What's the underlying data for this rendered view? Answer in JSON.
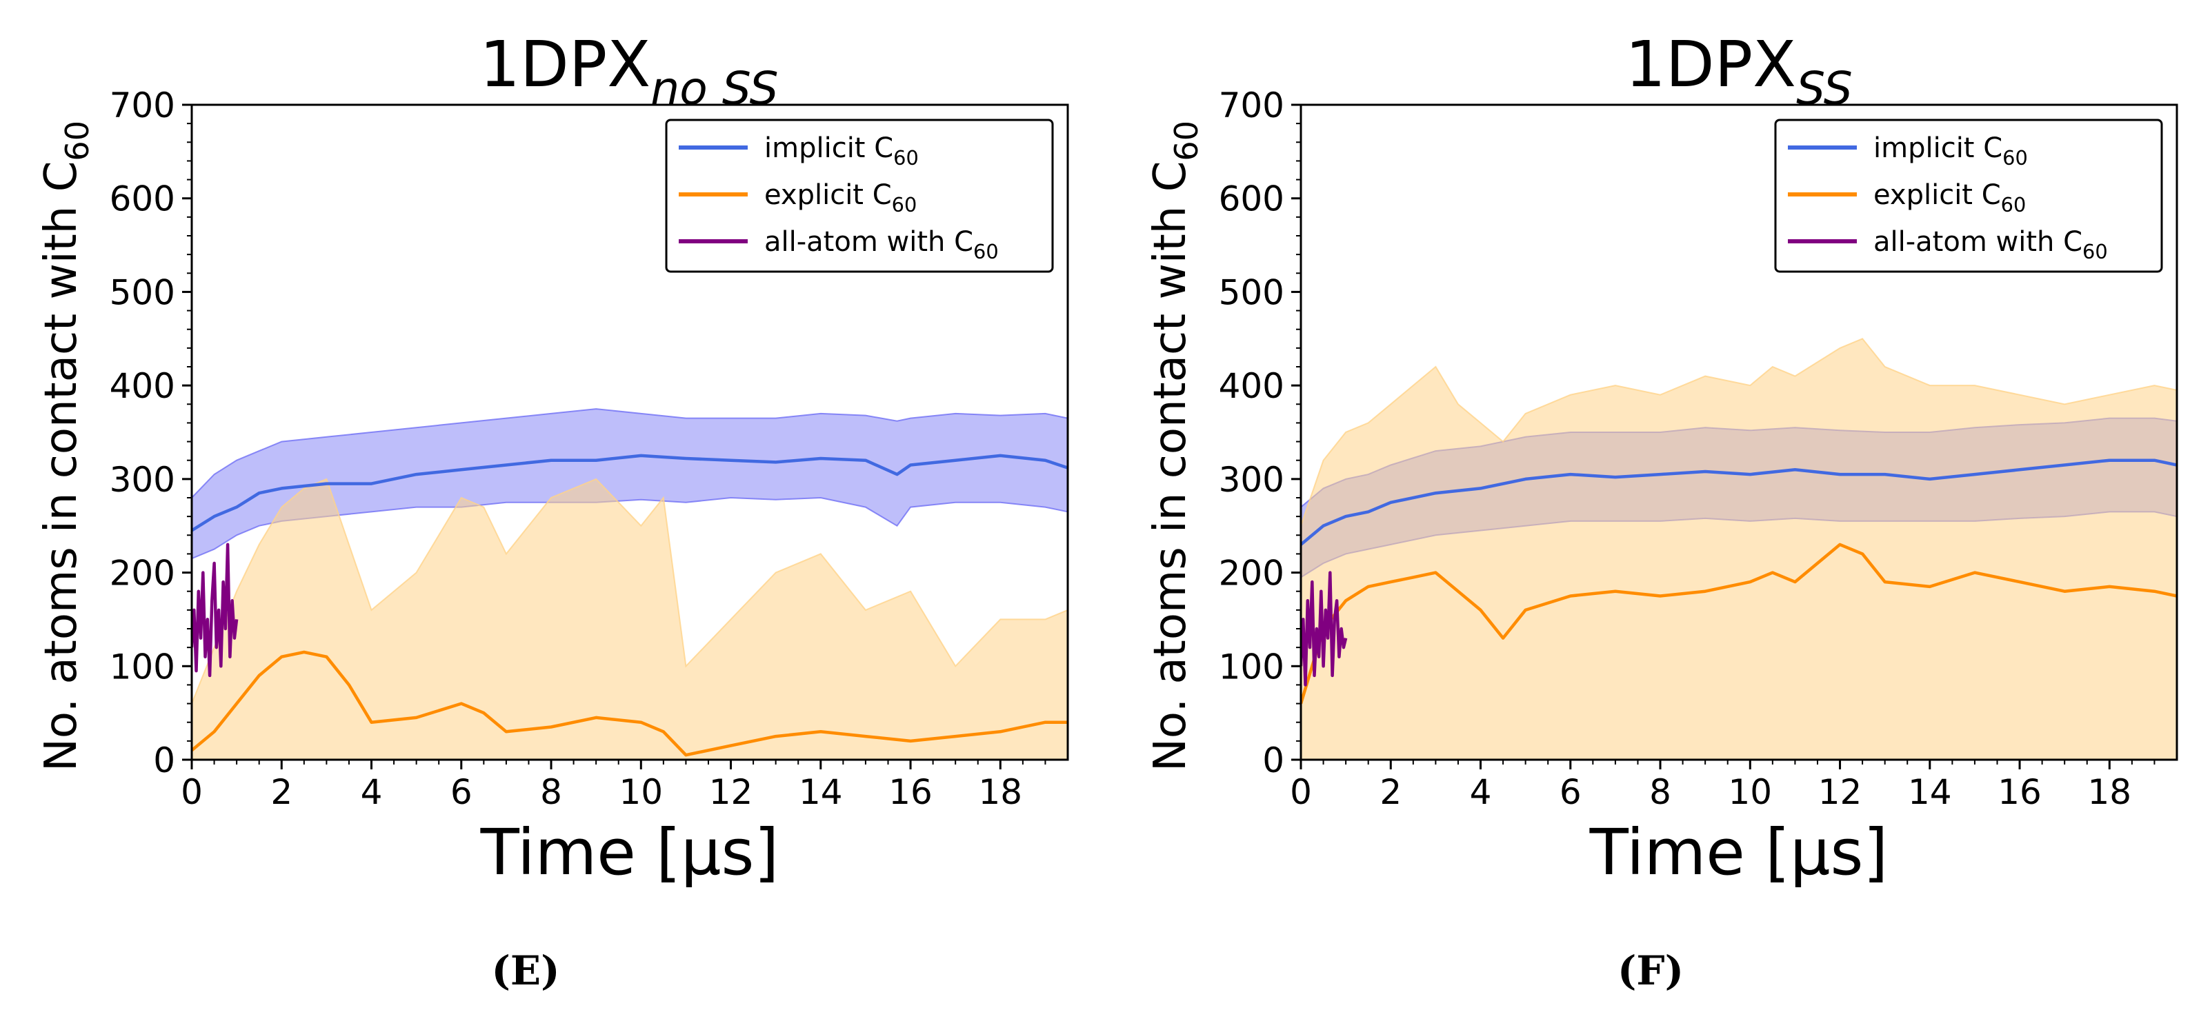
{
  "chart_data": [
    {
      "type": "line",
      "panel_label": "(E)",
      "title": {
        "main": "1DPX",
        "sub": "no SS"
      },
      "xlabel": "Time [µs]",
      "ylabel": {
        "main": "No. atoms in contact with C",
        "sub": "60"
      },
      "xlim": [
        0,
        19.5
      ],
      "ylim": [
        0,
        700
      ],
      "xticks": [
        "0",
        "2",
        "4",
        "6",
        "8",
        "10",
        "12",
        "14",
        "16",
        "18"
      ],
      "yticks": [
        "0",
        "100",
        "200",
        "300",
        "400",
        "500",
        "600",
        "700"
      ],
      "legend": {
        "position": "top-right",
        "entries": [
          {
            "label": "implicit C",
            "sub": "60",
            "color": "#4169e1"
          },
          {
            "label": "explicit C",
            "sub": "60",
            "color": "#ff8c00"
          },
          {
            "label": "all-atom with C",
            "sub": "60",
            "color": "#800080"
          }
        ]
      },
      "series": [
        {
          "name": "implicit C60",
          "color": "#4169e1",
          "band_color": "#6f6ff5",
          "x": [
            0,
            0.5,
            1,
            1.5,
            2,
            3,
            4,
            5,
            6,
            7,
            8,
            9,
            10,
            11,
            12,
            13,
            14,
            15,
            15.7,
            16,
            17,
            18,
            19,
            19.5
          ],
          "values": [
            245,
            260,
            270,
            285,
            290,
            295,
            295,
            305,
            310,
            315,
            320,
            320,
            325,
            322,
            320,
            318,
            322,
            320,
            305,
            315,
            320,
            325,
            320,
            312
          ],
          "band_low": [
            215,
            225,
            240,
            250,
            255,
            260,
            265,
            270,
            270,
            275,
            275,
            275,
            278,
            275,
            280,
            278,
            280,
            270,
            250,
            270,
            275,
            275,
            270,
            265
          ],
          "band_high": [
            280,
            305,
            320,
            330,
            340,
            345,
            350,
            355,
            360,
            365,
            370,
            375,
            370,
            365,
            365,
            365,
            370,
            368,
            362,
            365,
            370,
            368,
            370,
            365
          ]
        },
        {
          "name": "explicit C60",
          "color": "#ff8c00",
          "band_color": "#ffd38a",
          "x": [
            0,
            0.5,
            1,
            1.5,
            2,
            2.5,
            3,
            3.5,
            4,
            5,
            6,
            6.5,
            7,
            8,
            9,
            10,
            10.5,
            11,
            12,
            13,
            14,
            15,
            16,
            17,
            18,
            19,
            19.5
          ],
          "values": [
            10,
            30,
            60,
            90,
            110,
            115,
            110,
            80,
            40,
            45,
            60,
            50,
            30,
            35,
            45,
            40,
            30,
            5,
            15,
            25,
            30,
            25,
            20,
            25,
            30,
            40,
            40
          ],
          "band_low": [
            0,
            0,
            0,
            0,
            0,
            0,
            0,
            0,
            0,
            0,
            0,
            0,
            0,
            0,
            0,
            0,
            0,
            0,
            0,
            0,
            0,
            0,
            0,
            0,
            0,
            0,
            0
          ],
          "band_high": [
            60,
            120,
            180,
            230,
            270,
            290,
            300,
            230,
            160,
            200,
            280,
            270,
            220,
            280,
            300,
            250,
            280,
            100,
            150,
            200,
            220,
            160,
            180,
            100,
            150,
            150,
            160
          ]
        },
        {
          "name": "all-atom with C60",
          "color": "#800080",
          "x": [
            0,
            0.05,
            0.1,
            0.15,
            0.2,
            0.25,
            0.3,
            0.35,
            0.4,
            0.45,
            0.5,
            0.55,
            0.6,
            0.65,
            0.7,
            0.75,
            0.8,
            0.85,
            0.9,
            0.95,
            1.0
          ],
          "values": [
            120,
            160,
            95,
            180,
            130,
            200,
            110,
            150,
            90,
            170,
            210,
            120,
            160,
            100,
            190,
            140,
            230,
            110,
            170,
            130,
            150
          ]
        }
      ]
    },
    {
      "type": "line",
      "panel_label": "(F)",
      "title": {
        "main": "1DPX",
        "sub": "SS"
      },
      "xlabel": "Time [µs]",
      "ylabel": {
        "main": "No. atoms in contact with C",
        "sub": "60"
      },
      "xlim": [
        0,
        19.5
      ],
      "ylim": [
        0,
        700
      ],
      "xticks": [
        "0",
        "2",
        "4",
        "6",
        "8",
        "10",
        "12",
        "14",
        "16",
        "18"
      ],
      "yticks": [
        "0",
        "100",
        "200",
        "300",
        "400",
        "500",
        "600",
        "700"
      ],
      "legend": {
        "position": "top-right",
        "entries": [
          {
            "label": "implicit C",
            "sub": "60",
            "color": "#4169e1"
          },
          {
            "label": "explicit C",
            "sub": "60",
            "color": "#ff8c00"
          },
          {
            "label": "all-atom with C",
            "sub": "60",
            "color": "#800080"
          }
        ]
      },
      "series": [
        {
          "name": "implicit C60",
          "color": "#4169e1",
          "band_color": "#6f6ff5",
          "x": [
            0,
            0.5,
            1,
            1.5,
            2,
            3,
            4,
            5,
            6,
            7,
            8,
            9,
            10,
            11,
            12,
            13,
            14,
            15,
            16,
            17,
            18,
            19,
            19.5
          ],
          "values": [
            230,
            250,
            260,
            265,
            275,
            285,
            290,
            300,
            305,
            302,
            305,
            308,
            305,
            310,
            305,
            305,
            300,
            305,
            310,
            315,
            320,
            320,
            315
          ],
          "band_low": [
            195,
            210,
            220,
            225,
            230,
            240,
            245,
            250,
            255,
            255,
            255,
            258,
            255,
            258,
            255,
            255,
            255,
            255,
            258,
            260,
            265,
            265,
            260
          ],
          "band_high": [
            270,
            290,
            300,
            305,
            315,
            330,
            335,
            345,
            350,
            350,
            350,
            355,
            352,
            355,
            352,
            350,
            350,
            355,
            358,
            360,
            365,
            365,
            362
          ]
        },
        {
          "name": "explicit C60",
          "color": "#ff8c00",
          "band_color": "#ffd38a",
          "x": [
            0,
            0.5,
            1,
            1.5,
            2,
            2.5,
            3,
            3.5,
            4,
            4.5,
            5,
            6,
            7,
            8,
            9,
            10,
            10.5,
            11,
            12,
            12.5,
            13,
            14,
            15,
            16,
            17,
            18,
            19,
            19.5
          ],
          "values": [
            60,
            140,
            170,
            185,
            190,
            195,
            200,
            180,
            160,
            130,
            160,
            175,
            180,
            175,
            180,
            190,
            200,
            190,
            230,
            220,
            190,
            185,
            200,
            190,
            180,
            185,
            180,
            175
          ],
          "band_low": [
            0,
            0,
            0,
            0,
            0,
            0,
            0,
            0,
            0,
            0,
            0,
            0,
            0,
            0,
            0,
            0,
            0,
            0,
            0,
            0,
            0,
            0,
            0,
            0,
            0,
            0,
            0,
            0
          ],
          "band_high": [
            250,
            320,
            350,
            360,
            380,
            400,
            420,
            380,
            360,
            340,
            370,
            390,
            400,
            390,
            410,
            400,
            420,
            410,
            440,
            450,
            420,
            400,
            400,
            390,
            380,
            390,
            400,
            395
          ]
        },
        {
          "name": "all-atom with C60",
          "color": "#800080",
          "x": [
            0,
            0.05,
            0.1,
            0.15,
            0.2,
            0.25,
            0.3,
            0.35,
            0.4,
            0.45,
            0.5,
            0.55,
            0.6,
            0.65,
            0.7,
            0.75,
            0.8,
            0.85,
            0.9,
            0.95,
            1.0
          ],
          "values": [
            100,
            150,
            80,
            170,
            120,
            190,
            90,
            140,
            110,
            180,
            100,
            160,
            130,
            200,
            90,
            150,
            170,
            110,
            140,
            120,
            130
          ]
        }
      ]
    }
  ]
}
